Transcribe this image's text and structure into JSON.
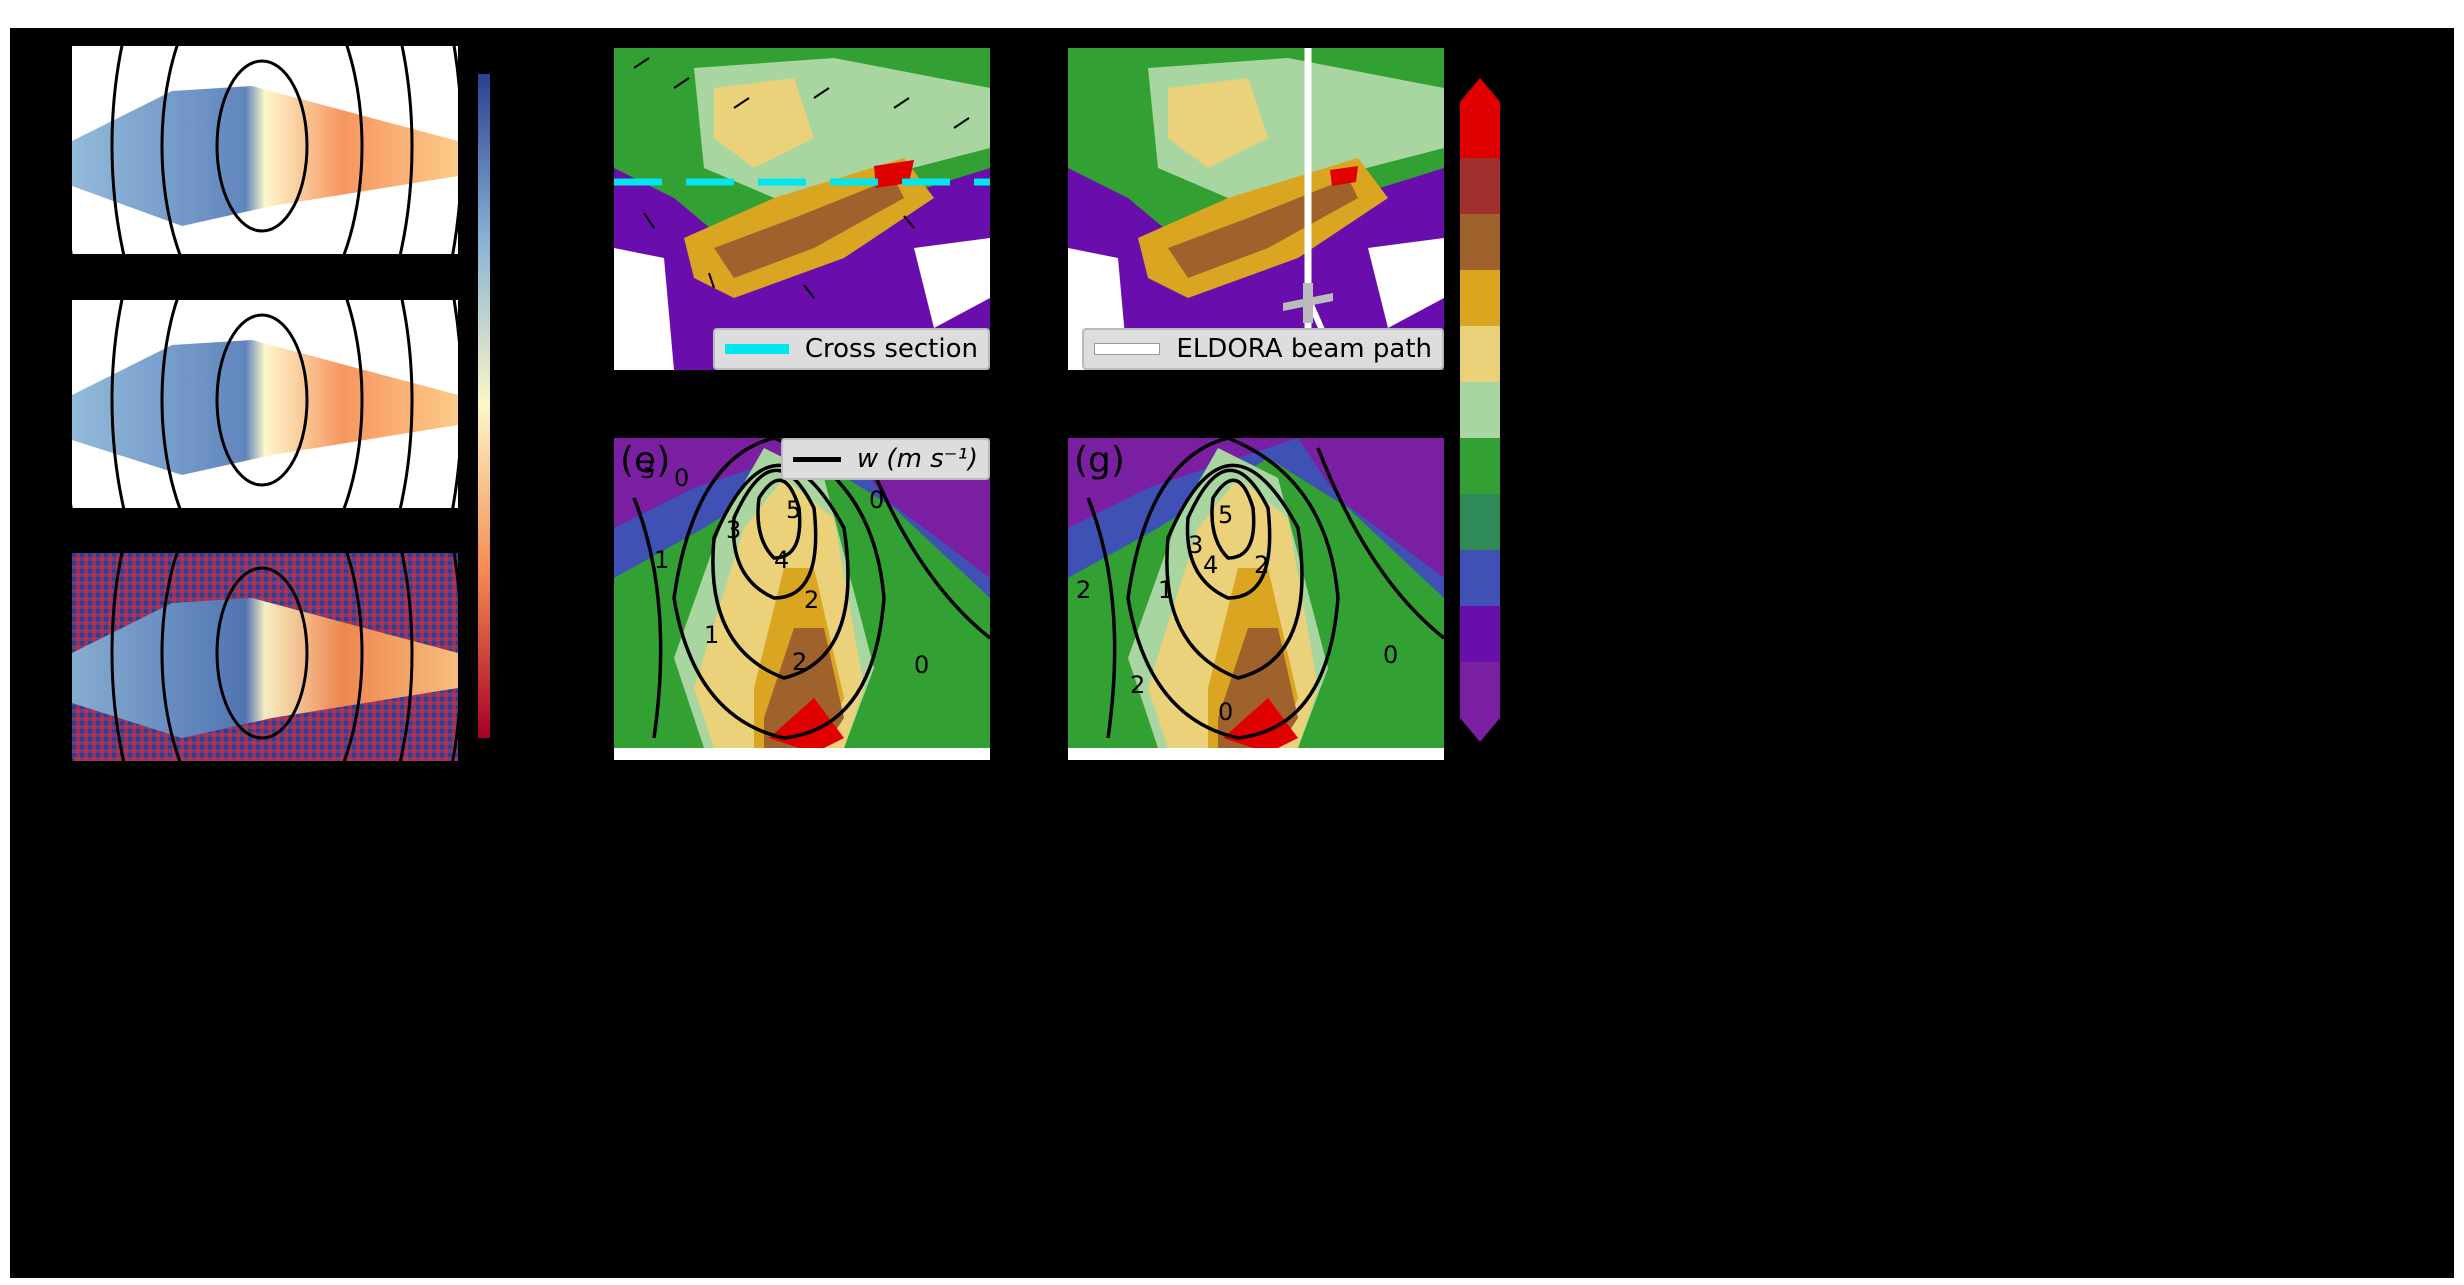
{
  "panels": [
    {
      "id": "radar-1",
      "type": "doppler-velocity"
    },
    {
      "id": "radar-2",
      "type": "doppler-velocity"
    },
    {
      "id": "radar-3",
      "type": "doppler-velocity-noisy"
    },
    {
      "id": "plan-view-1",
      "legend_label": "Cross section",
      "legend_color": "#00e5ee"
    },
    {
      "id": "plan-view-2",
      "legend_label": "ELDORA beam path",
      "legend_color": "#ffffff"
    },
    {
      "id": "cross-section-e",
      "label": "(e)",
      "legend_label": "w (m s⁻¹)",
      "contour_labels": [
        "3",
        "0",
        "1",
        "1",
        "3",
        "5",
        "4",
        "2",
        "2",
        "0",
        "0"
      ]
    },
    {
      "id": "cross-section-g",
      "label": "(g)",
      "legend_label": "",
      "contour_labels": [
        "2",
        "1",
        "3",
        "4",
        "5",
        "2",
        "2",
        "0",
        "0"
      ]
    }
  ],
  "colorbars": {
    "velocity": {
      "colors": [
        "#2b3f8f",
        "#4f77b6",
        "#87b3d6",
        "#c6e1ee",
        "#fdf7c6",
        "#fdc57b",
        "#f58a4f",
        "#d73c2c",
        "#a50026"
      ]
    },
    "reflectivity": {
      "colors": [
        "#7b1fa2",
        "#6a0dad",
        "#3f51b5",
        "#2e8b57",
        "#32a032",
        "#a8d5a0",
        "#ebd27a",
        "#daa520",
        "#a0622d",
        "#a0302d",
        "#e00000"
      ]
    }
  }
}
